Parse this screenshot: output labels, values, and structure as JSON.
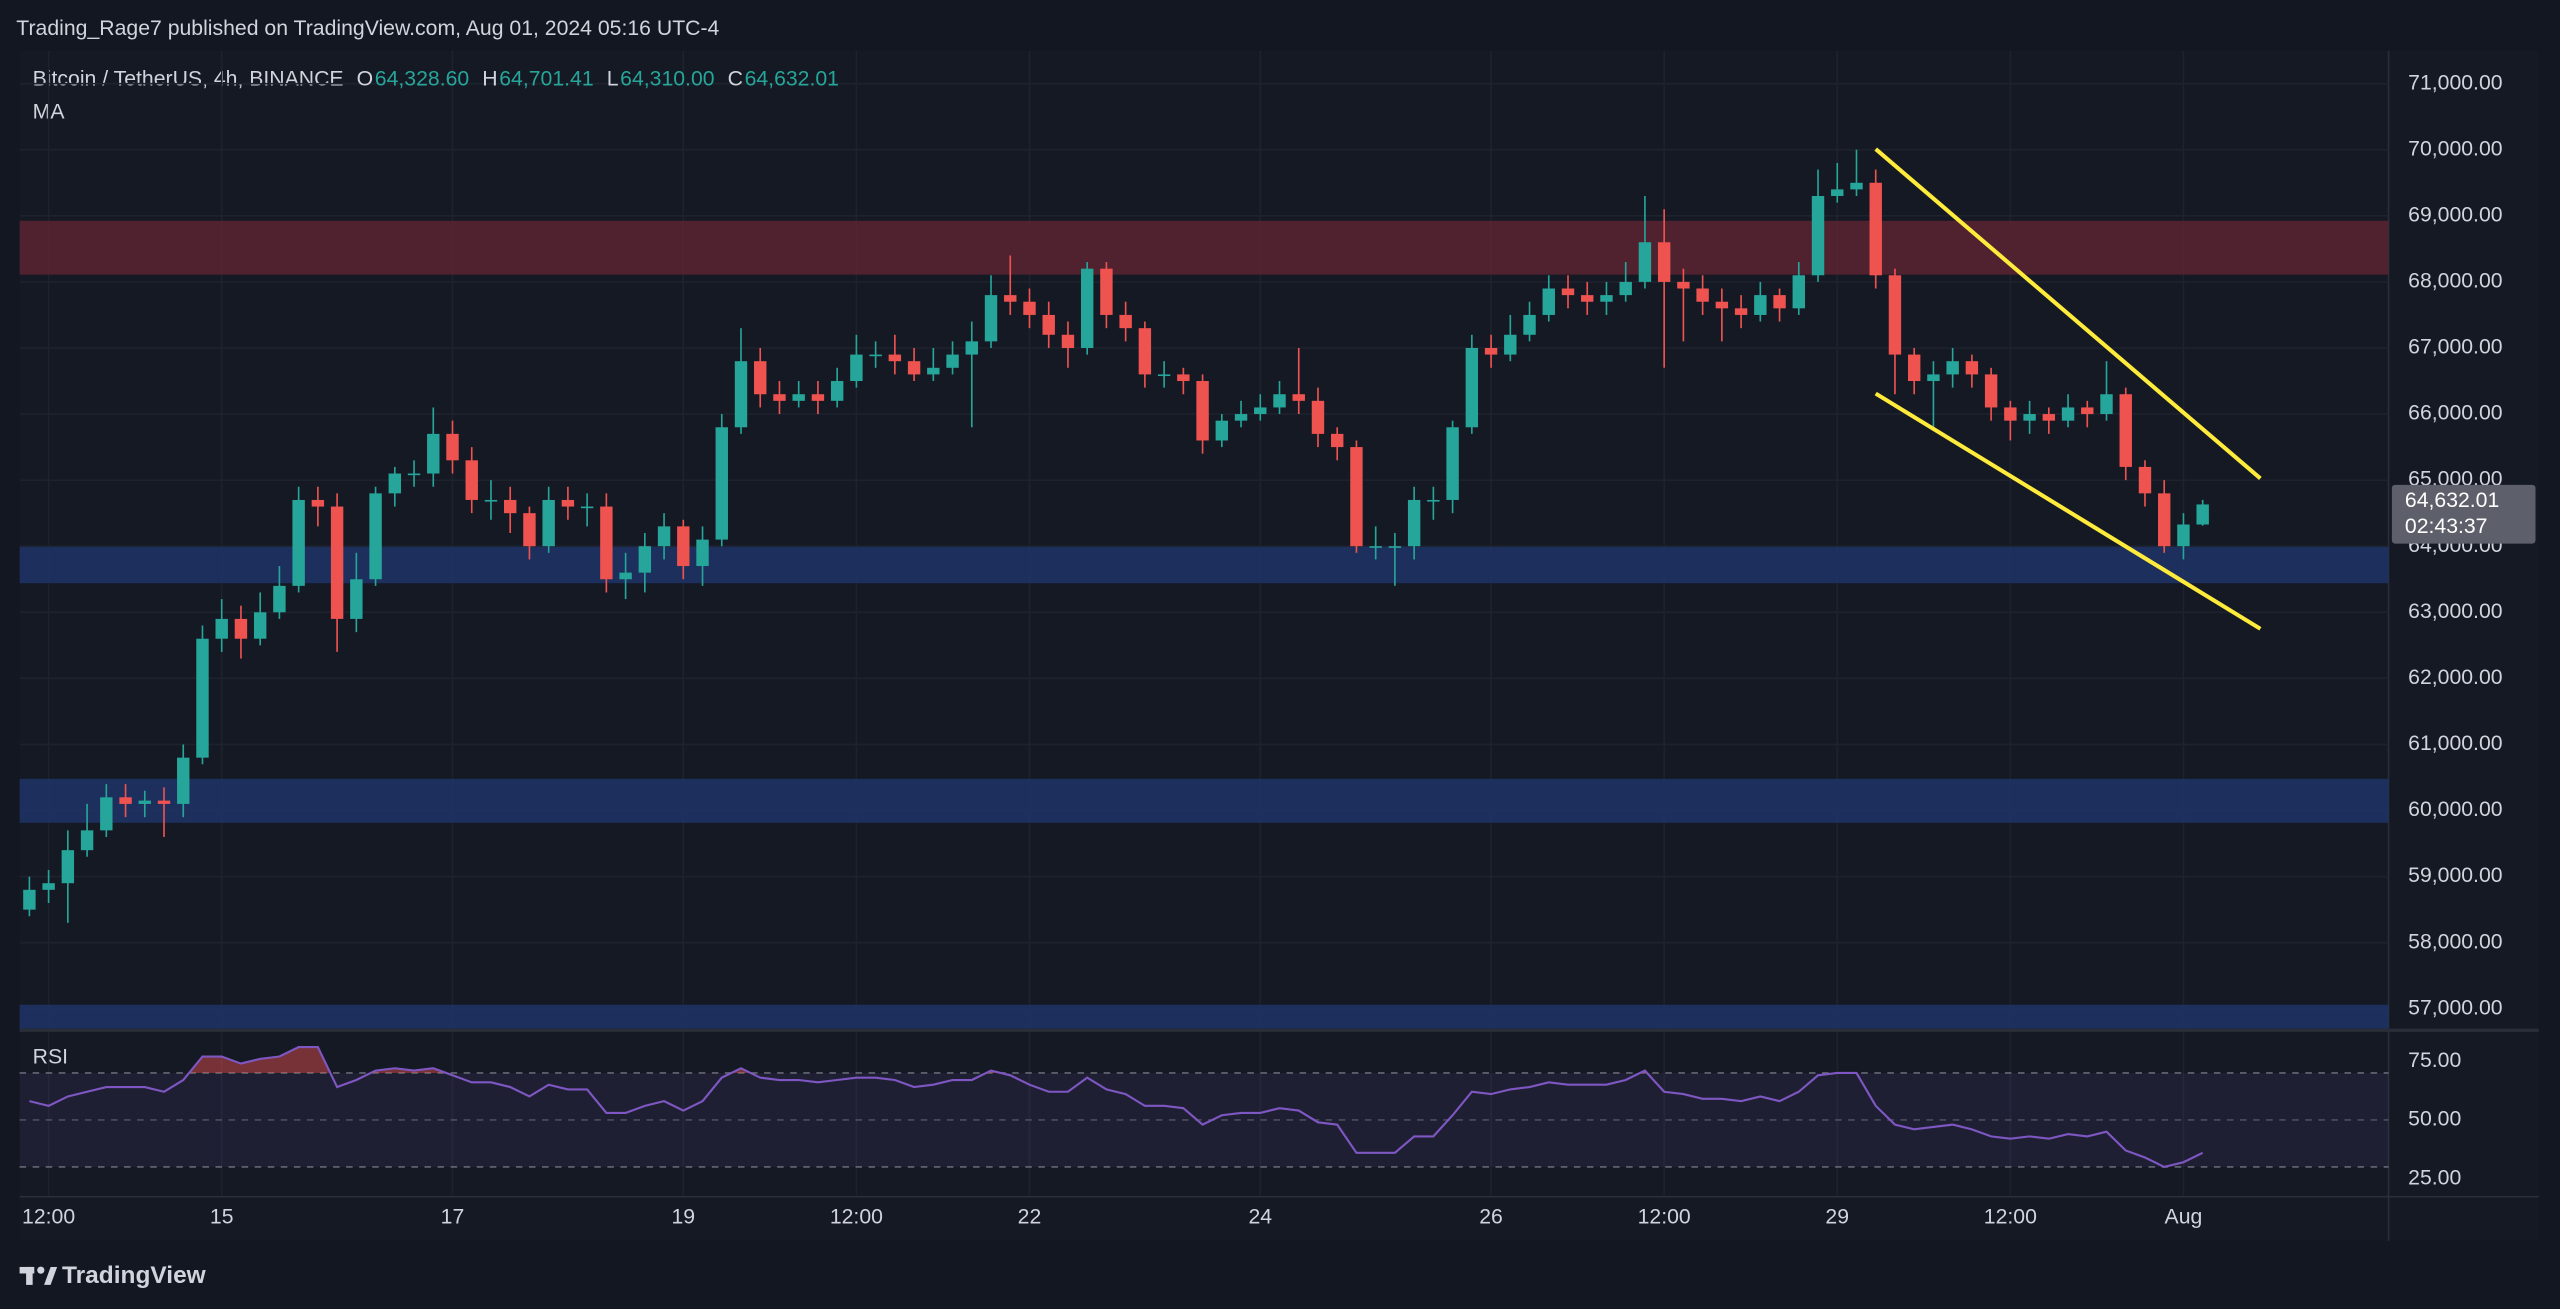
{
  "header": {
    "publisher_line": "Trading_Rage7 published on TradingView.com, Aug 01, 2024 05:16 UTC-4"
  },
  "chart_data": {
    "type": "candlestick",
    "symbol": "Bitcoin / TetherUS, 4h, BINANCE",
    "legend_keys": [
      "O",
      "H",
      "L",
      "C"
    ],
    "legend_values": [
      "64,328.60",
      "64,701.41",
      "64,310.00",
      "64,632.01"
    ],
    "indicator_label": "MA",
    "x": [
      "2024-07-13T08:00",
      "2024-07-13T12:00",
      "2024-07-13T16:00",
      "2024-07-13T20:00",
      "2024-07-14T00:00",
      "2024-07-14T04:00",
      "2024-07-14T08:00",
      "2024-07-14T12:00",
      "2024-07-14T16:00",
      "2024-07-14T20:00",
      "2024-07-15T00:00",
      "2024-07-15T04:00",
      "2024-07-15T08:00",
      "2024-07-15T12:00",
      "2024-07-15T16:00",
      "2024-07-15T20:00",
      "2024-07-16T00:00",
      "2024-07-16T04:00",
      "2024-07-16T08:00",
      "2024-07-16T12:00",
      "2024-07-16T16:00",
      "2024-07-16T20:00",
      "2024-07-17T00:00",
      "2024-07-17T04:00",
      "2024-07-17T08:00",
      "2024-07-17T12:00",
      "2024-07-17T16:00",
      "2024-07-17T20:00",
      "2024-07-18T00:00",
      "2024-07-18T04:00",
      "2024-07-18T08:00",
      "2024-07-18T12:00",
      "2024-07-18T16:00",
      "2024-07-18T20:00",
      "2024-07-19T00:00",
      "2024-07-19T04:00",
      "2024-07-19T08:00",
      "2024-07-19T12:00",
      "2024-07-19T16:00",
      "2024-07-19T20:00",
      "2024-07-20T00:00",
      "2024-07-20T04:00",
      "2024-07-20T08:00",
      "2024-07-20T12:00",
      "2024-07-20T16:00",
      "2024-07-20T20:00",
      "2024-07-21T00:00",
      "2024-07-21T04:00",
      "2024-07-21T08:00",
      "2024-07-21T12:00",
      "2024-07-21T16:00",
      "2024-07-21T20:00",
      "2024-07-22T00:00",
      "2024-07-22T04:00",
      "2024-07-22T08:00",
      "2024-07-22T12:00",
      "2024-07-22T16:00",
      "2024-07-22T20:00",
      "2024-07-23T00:00",
      "2024-07-23T04:00",
      "2024-07-23T08:00",
      "2024-07-23T12:00",
      "2024-07-23T16:00",
      "2024-07-23T20:00",
      "2024-07-24T00:00",
      "2024-07-24T04:00",
      "2024-07-24T08:00",
      "2024-07-24T12:00",
      "2024-07-24T16:00",
      "2024-07-24T20:00",
      "2024-07-25T00:00",
      "2024-07-25T04:00",
      "2024-07-25T08:00",
      "2024-07-25T12:00",
      "2024-07-25T16:00",
      "2024-07-25T20:00",
      "2024-07-26T00:00",
      "2024-07-26T04:00",
      "2024-07-26T08:00",
      "2024-07-26T12:00",
      "2024-07-26T16:00",
      "2024-07-26T20:00",
      "2024-07-27T00:00",
      "2024-07-27T04:00",
      "2024-07-27T08:00",
      "2024-07-27T12:00",
      "2024-07-27T16:00",
      "2024-07-27T20:00",
      "2024-07-28T00:00",
      "2024-07-28T04:00",
      "2024-07-28T08:00",
      "2024-07-28T12:00",
      "2024-07-28T16:00",
      "2024-07-28T20:00",
      "2024-07-29T00:00",
      "2024-07-29T04:00",
      "2024-07-29T08:00",
      "2024-07-29T12:00",
      "2024-07-29T16:00",
      "2024-07-29T20:00",
      "2024-07-30T00:00",
      "2024-07-30T04:00",
      "2024-07-30T08:00",
      "2024-07-30T12:00",
      "2024-07-30T16:00",
      "2024-07-30T20:00",
      "2024-07-31T00:00",
      "2024-07-31T04:00",
      "2024-07-31T08:00",
      "2024-07-31T12:00",
      "2024-07-31T16:00",
      "2024-07-31T20:00",
      "2024-08-01T00:00",
      "2024-08-01T04:00"
    ],
    "open": [
      58500,
      58800,
      58900,
      59400,
      59700,
      60200,
      60100,
      60150,
      60100,
      60800,
      62600,
      62900,
      62600,
      63000,
      63400,
      64700,
      64600,
      62900,
      63500,
      64800,
      65100,
      65100,
      65700,
      65300,
      64700,
      64700,
      64500,
      64000,
      64700,
      64600,
      64600,
      63500,
      63600,
      64000,
      64300,
      63700,
      64100,
      65800,
      66800,
      66300,
      66200,
      66300,
      66200,
      66500,
      66900,
      66900,
      66800,
      66600,
      66700,
      66900,
      67100,
      67800,
      67700,
      67500,
      67200,
      67000,
      68200,
      67500,
      67300,
      66600,
      66600,
      66500,
      65600,
      65900,
      66000,
      66100,
      66300,
      66200,
      65700,
      65500,
      64000,
      64000,
      64000,
      64700,
      64700,
      65800,
      67000,
      66900,
      67200,
      67500,
      67900,
      67800,
      67700,
      67800,
      68000,
      68600,
      68000,
      67900,
      67700,
      67600,
      67500,
      67800,
      67600,
      68100,
      69300,
      69400,
      69500,
      68100,
      66900,
      66500,
      66600,
      66800,
      66600,
      66100,
      65900,
      66000,
      65900,
      66100,
      66000,
      66300,
      65200,
      64800,
      64000,
      64328.6
    ],
    "high": [
      59000,
      59100,
      59700,
      60100,
      60400,
      60400,
      60300,
      60350,
      61000,
      62800,
      63200,
      63100,
      63300,
      63700,
      64900,
      64900,
      64800,
      63900,
      64900,
      65200,
      65300,
      66100,
      65900,
      65500,
      65000,
      64900,
      64600,
      64900,
      64900,
      64800,
      64800,
      63900,
      64200,
      64500,
      64400,
      64300,
      66000,
      67300,
      67000,
      66500,
      66500,
      66500,
      66700,
      67200,
      67100,
      67200,
      67000,
      67000,
      67100,
      67400,
      68100,
      68400,
      67900,
      67700,
      67400,
      68300,
      68300,
      67700,
      67400,
      66800,
      66700,
      66600,
      66000,
      66200,
      66300,
      66500,
      67000,
      66400,
      65800,
      65600,
      64300,
      64200,
      64900,
      64900,
      65900,
      67200,
      67200,
      67500,
      67700,
      68100,
      68100,
      68000,
      68000,
      68300,
      69300,
      69100,
      68200,
      68100,
      67900,
      67800,
      68000,
      67900,
      68300,
      69700,
      69800,
      70000,
      69700,
      68200,
      67000,
      66800,
      67000,
      66900,
      66700,
      66200,
      66200,
      66100,
      66300,
      66200,
      66800,
      66400,
      65300,
      65000,
      64500,
      64701.41
    ],
    "low": [
      58400,
      58600,
      58300,
      59300,
      59600,
      59900,
      59900,
      59600,
      59900,
      60700,
      62400,
      62300,
      62500,
      62900,
      63300,
      64300,
      62400,
      62700,
      63400,
      64600,
      64900,
      64900,
      65100,
      64500,
      64400,
      64200,
      63800,
      63900,
      64400,
      64300,
      63300,
      63200,
      63300,
      63800,
      63500,
      63400,
      64000,
      65700,
      66100,
      66000,
      66100,
      66000,
      66100,
      66400,
      66700,
      66600,
      66500,
      66500,
      66600,
      65800,
      67000,
      67500,
      67300,
      67000,
      66700,
      66900,
      67300,
      67100,
      66400,
      66400,
      66300,
      65400,
      65500,
      65800,
      65900,
      66000,
      66000,
      65500,
      65300,
      63900,
      63800,
      63400,
      63800,
      64400,
      64500,
      65700,
      66700,
      66800,
      67100,
      67400,
      67600,
      67500,
      67500,
      67700,
      67900,
      66700,
      67100,
      67500,
      67100,
      67300,
      67400,
      67400,
      67500,
      68000,
      69200,
      69300,
      67900,
      66300,
      66300,
      65800,
      66400,
      66400,
      65900,
      65600,
      65700,
      65700,
      65800,
      65800,
      65900,
      65000,
      64600,
      63900,
      63800,
      64310
    ],
    "close": [
      58800,
      58900,
      59400,
      59700,
      60200,
      60100,
      60150,
      60100,
      60800,
      62600,
      62900,
      62600,
      63000,
      63400,
      64700,
      64600,
      62900,
      63500,
      64800,
      65100,
      65100,
      65700,
      65300,
      64700,
      64700,
      64500,
      64000,
      64700,
      64600,
      64600,
      63500,
      63600,
      64000,
      64300,
      63700,
      64100,
      65800,
      66800,
      66300,
      66200,
      66300,
      66200,
      66500,
      66900,
      66900,
      66800,
      66600,
      66700,
      66900,
      67100,
      67800,
      67700,
      67500,
      67200,
      67000,
      68200,
      67500,
      67300,
      66600,
      66600,
      66500,
      65600,
      65900,
      66000,
      66100,
      66300,
      66200,
      65700,
      65500,
      64000,
      64000,
      64000,
      64700,
      64700,
      65800,
      67000,
      66900,
      67200,
      67500,
      67900,
      67800,
      67700,
      67800,
      68000,
      68600,
      68000,
      67900,
      67700,
      67600,
      67500,
      67800,
      67600,
      68100,
      69300,
      69400,
      69500,
      68100,
      66900,
      66500,
      66600,
      66800,
      66600,
      66100,
      65900,
      66000,
      65900,
      66100,
      66000,
      66300,
      65200,
      64800,
      64000,
      64328.6,
      64632.01
    ],
    "up_color": "#26a69a",
    "down_color": "#ef5350",
    "ylim": [
      56700,
      71500
    ],
    "yticks": [
      {
        "value": 57000,
        "label": "57,000.00"
      },
      {
        "value": 58000,
        "label": "58,000.00"
      },
      {
        "value": 59000,
        "label": "59,000.00"
      },
      {
        "value": 60000,
        "label": "60,000.00"
      },
      {
        "value": 61000,
        "label": "61,000.00"
      },
      {
        "value": 62000,
        "label": "62,000.00"
      },
      {
        "value": 63000,
        "label": "63,000.00"
      },
      {
        "value": 64000,
        "label": "64,000.00"
      },
      {
        "value": 65000,
        "label": "65,000.00"
      },
      {
        "value": 66000,
        "label": "66,000.00"
      },
      {
        "value": 67000,
        "label": "67,000.00"
      },
      {
        "value": 68000,
        "label": "68,000.00"
      },
      {
        "value": 69000,
        "label": "69,000.00"
      },
      {
        "value": 70000,
        "label": "70,000.00"
      },
      {
        "value": 71000,
        "label": "71,000.00"
      }
    ],
    "xticks": [
      {
        "value": "2024-07-13T12:00",
        "label": "12:00"
      },
      {
        "value": "2024-07-15T00:00",
        "label": "15"
      },
      {
        "value": "2024-07-17T00:00",
        "label": "17"
      },
      {
        "value": "2024-07-19T00:00",
        "label": "19"
      },
      {
        "value": "2024-07-20T12:00",
        "label": "12:00"
      },
      {
        "value": "2024-07-22T00:00",
        "label": "22"
      },
      {
        "value": "2024-07-24T00:00",
        "label": "24"
      },
      {
        "value": "2024-07-26T00:00",
        "label": "26"
      },
      {
        "value": "2024-07-27T12:00",
        "label": "12:00"
      },
      {
        "value": "2024-07-29T00:00",
        "label": "29"
      },
      {
        "value": "2024-07-30T12:00",
        "label": "12:00"
      },
      {
        "value": "2024-08-01T00:00",
        "label": "Aug"
      }
    ],
    "zones": [
      {
        "from": 68110,
        "to": 68925,
        "color": "#5a2531"
      },
      {
        "from": 63440,
        "to": 63990,
        "color": "#1f3467"
      },
      {
        "from": 59815,
        "to": 60480,
        "color": "#1f3467"
      },
      {
        "from": 56700,
        "to": 57060,
        "color": "#1f3467"
      }
    ],
    "trendlines": [
      {
        "x1": "2024-07-29T08:00",
        "y1": 70010,
        "x2": "2024-08-01T16:00",
        "y2": 65025,
        "color": "#ffeb3b"
      },
      {
        "x1": "2024-07-29T08:00",
        "y1": 66310,
        "x2": "2024-08-01T16:00",
        "y2": 62750,
        "color": "#ffeb3b"
      }
    ],
    "last_price_label": "64,632.01",
    "countdown": "02:43:37",
    "grid": true
  },
  "rsi": {
    "type": "line",
    "label": "RSI",
    "color": "#7e57c2",
    "values": [
      58,
      56,
      60,
      62,
      64,
      64,
      64,
      62,
      67,
      77,
      77,
      74,
      76,
      77,
      81,
      81,
      64,
      67,
      71,
      72,
      71,
      72,
      69,
      66,
      66,
      64,
      60,
      65,
      63,
      63,
      53,
      53,
      56,
      58,
      54,
      58,
      68,
      72,
      68,
      67,
      67,
      66,
      67,
      68,
      68,
      67,
      64,
      65,
      67,
      67,
      71,
      69,
      65,
      62,
      62,
      68,
      63,
      61,
      56,
      56,
      55,
      48,
      52,
      53,
      53,
      55,
      54,
      49,
      48,
      36,
      36,
      36,
      43,
      43,
      52,
      62,
      61,
      63,
      64,
      66,
      65,
      65,
      65,
      67,
      71,
      62,
      61,
      59,
      59,
      58,
      60,
      58,
      62,
      69,
      70,
      70,
      56,
      48,
      46,
      47,
      48,
      46,
      43,
      42,
      43,
      42,
      44,
      43,
      45,
      37,
      34,
      30,
      32,
      36
    ],
    "ylim": [
      18,
      87.5
    ],
    "yticks": [
      {
        "value": 25,
        "label": "25.00"
      },
      {
        "value": 50,
        "label": "50.00"
      },
      {
        "value": 75,
        "label": "75.00"
      }
    ],
    "bands": [
      30,
      50,
      70
    ]
  },
  "footer": {
    "brand": "TradingView"
  }
}
